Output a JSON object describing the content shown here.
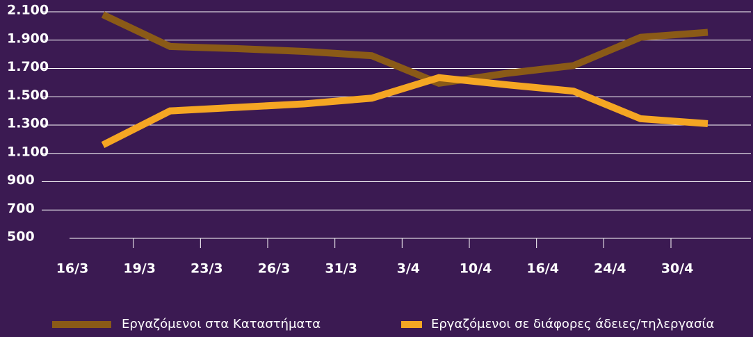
{
  "chart_data": {
    "type": "line",
    "categories": [
      "16/3",
      "19/3",
      "23/3",
      "26/3",
      "31/3",
      "3/4",
      "10/4",
      "16/4",
      "24/4",
      "30/4"
    ],
    "series": [
      {
        "name": "Εργαζόμενοι στα Καταστήματα",
        "color": "#8a5a17",
        "values": [
          2080,
          1855,
          1840,
          1820,
          1790,
          1595,
          1665,
          1720,
          1920,
          1955
        ]
      },
      {
        "name": "Εργαζόμενοι σε διάφορες άδειες/τηλεργασία",
        "color": "#f5a623",
        "values": [
          1160,
          1400,
          1425,
          1450,
          1490,
          1635,
          1585,
          1540,
          1345,
          1310
        ]
      }
    ],
    "ylim": [
      500,
      2100
    ],
    "yticks": [
      500,
      700,
      900,
      {
        "value": 1100,
        "label": "1.100"
      },
      {
        "value": 1300,
        "label": "1.300"
      },
      {
        "value": 1500,
        "label": "1.500"
      },
      {
        "value": 1700,
        "label": "1.700"
      },
      {
        "value": 1900,
        "label": "1.900"
      },
      {
        "value": 2100,
        "label": "2.100"
      }
    ],
    "grid": true
  }
}
